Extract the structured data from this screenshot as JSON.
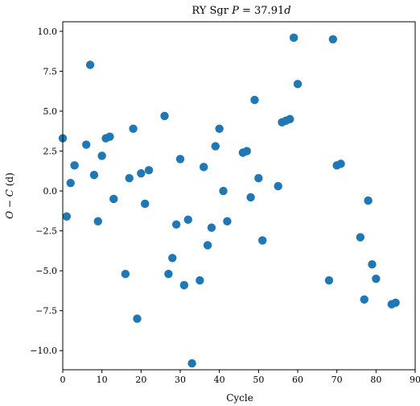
{
  "chart_data": {
    "type": "scatter",
    "title": "RY Sgr $P = 37.91 d$",
    "title_display": {
      "prefix": "RY Sgr ",
      "italic": "P",
      "rest": " = 37.91",
      "unit": "d"
    },
    "xlabel": "Cycle",
    "ylabel": "O − C (d)",
    "ylabel_display": {
      "o": "O",
      "minus": " − ",
      "c": "C",
      "rest": " (d)"
    },
    "xlim": [
      0,
      90
    ],
    "ylim": [
      -11.2,
      10.6
    ],
    "xticks": [
      0,
      10,
      20,
      30,
      40,
      50,
      60,
      70,
      80,
      90
    ],
    "xtick_labels": [
      "0",
      "10",
      "20",
      "30",
      "40",
      "50",
      "60",
      "70",
      "80",
      "90"
    ],
    "yticks": [
      10,
      7.5,
      5,
      2.5,
      0,
      -2.5,
      -5,
      -7.5,
      -10
    ],
    "ytick_labels": [
      "10.0",
      "7.5",
      "5.0",
      "2.5",
      "0.0",
      "−2.5",
      "−5.0",
      "−7.5",
      "−10.0"
    ],
    "grid": false,
    "marker_color": "#1f77b4",
    "points": [
      {
        "x": 0,
        "y": 3.3
      },
      {
        "x": 1,
        "y": -1.6
      },
      {
        "x": 2,
        "y": 0.5
      },
      {
        "x": 3,
        "y": 1.6
      },
      {
        "x": 6,
        "y": 2.9
      },
      {
        "x": 7,
        "y": 7.9
      },
      {
        "x": 8,
        "y": 1.0
      },
      {
        "x": 9,
        "y": -1.9
      },
      {
        "x": 10,
        "y": 2.2
      },
      {
        "x": 11,
        "y": 3.3
      },
      {
        "x": 12,
        "y": 3.4
      },
      {
        "x": 13,
        "y": -0.5
      },
      {
        "x": 16,
        "y": -5.2
      },
      {
        "x": 17,
        "y": 0.8
      },
      {
        "x": 18,
        "y": 3.9
      },
      {
        "x": 19,
        "y": -8.0
      },
      {
        "x": 20,
        "y": 1.1
      },
      {
        "x": 21,
        "y": -0.8
      },
      {
        "x": 22,
        "y": 1.3
      },
      {
        "x": 26,
        "y": 4.7
      },
      {
        "x": 27,
        "y": -5.2
      },
      {
        "x": 28,
        "y": -4.2
      },
      {
        "x": 29,
        "y": -2.1
      },
      {
        "x": 30,
        "y": 2.0
      },
      {
        "x": 31,
        "y": -5.9
      },
      {
        "x": 32,
        "y": -1.8
      },
      {
        "x": 33,
        "y": -10.8
      },
      {
        "x": 35,
        "y": -5.6
      },
      {
        "x": 36,
        "y": 1.5
      },
      {
        "x": 37,
        "y": -3.4
      },
      {
        "x": 38,
        "y": -2.3
      },
      {
        "x": 39,
        "y": 2.8
      },
      {
        "x": 40,
        "y": 3.9
      },
      {
        "x": 41,
        "y": 0.0
      },
      {
        "x": 42,
        "y": -1.9
      },
      {
        "x": 46,
        "y": 2.4
      },
      {
        "x": 47,
        "y": 2.5
      },
      {
        "x": 48,
        "y": -0.4
      },
      {
        "x": 49,
        "y": 5.7
      },
      {
        "x": 50,
        "y": 0.8
      },
      {
        "x": 51,
        "y": -3.1
      },
      {
        "x": 55,
        "y": 0.3
      },
      {
        "x": 56,
        "y": 4.3
      },
      {
        "x": 57,
        "y": 4.4
      },
      {
        "x": 58,
        "y": 4.5
      },
      {
        "x": 59,
        "y": 9.6
      },
      {
        "x": 60,
        "y": 6.7
      },
      {
        "x": 68,
        "y": -5.6
      },
      {
        "x": 69,
        "y": 9.5
      },
      {
        "x": 70,
        "y": 1.6
      },
      {
        "x": 71,
        "y": 1.7
      },
      {
        "x": 76,
        "y": -2.9
      },
      {
        "x": 77,
        "y": -6.8
      },
      {
        "x": 78,
        "y": -0.6
      },
      {
        "x": 79,
        "y": -4.6
      },
      {
        "x": 80,
        "y": -5.5
      },
      {
        "x": 84,
        "y": -7.1
      },
      {
        "x": 85,
        "y": -7.0
      }
    ]
  }
}
